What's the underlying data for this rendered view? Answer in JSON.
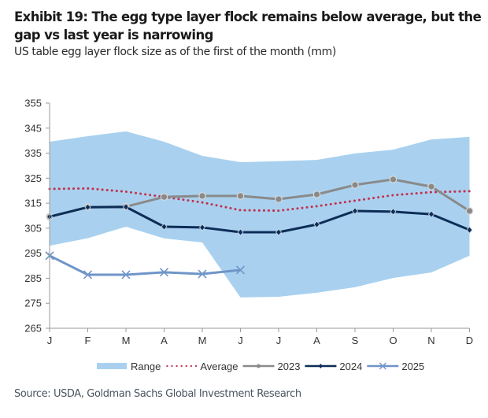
{
  "header": {
    "title": "Exhibit 19: The egg type layer flock remains below average, but the gap vs last year is narrowing",
    "subtitle": "US table egg layer flock size as of the first of the month (mm)"
  },
  "footer": {
    "source": "Source: USDA, Goldman Sachs Global Investment Research"
  },
  "colors": {
    "range": "#a9d1ef",
    "average": "#c0324f",
    "y2023": "#8a8a8a",
    "y2024": "#0d2d57",
    "y2025": "#6f95c8",
    "axis": "#9a9a9a"
  },
  "chart_data": {
    "type": "line",
    "title": "Exhibit 19: The egg type layer flock remains below average, but the gap vs last year is narrowing",
    "subtitle": "US table egg layer flock size as of the first of the month (mm)",
    "xlabel": "",
    "ylabel": "",
    "categories": [
      "J",
      "F",
      "M",
      "A",
      "M",
      "J",
      "J",
      "A",
      "S",
      "O",
      "N",
      "D"
    ],
    "ylim": [
      265,
      355
    ],
    "yticks": [
      265,
      275,
      285,
      295,
      305,
      315,
      325,
      335,
      345,
      355
    ],
    "grid": false,
    "legend_position": "bottom",
    "range": {
      "name": "Range",
      "upper": [
        339.6,
        341.8,
        343.7,
        339.6,
        333.9,
        331.4,
        331.8,
        332.3,
        334.9,
        336.4,
        340.5,
        341.5
      ],
      "lower": [
        298.0,
        301.0,
        305.6,
        300.9,
        299.3,
        277.3,
        277.6,
        279.2,
        281.4,
        285.1,
        287.3,
        294.0
      ]
    },
    "series": [
      {
        "name": "Average",
        "style": "dotted",
        "values": [
          320.7,
          320.9,
          319.6,
          317.5,
          315.3,
          312.2,
          312.0,
          313.8,
          316.0,
          318.2,
          319.4,
          319.8
        ]
      },
      {
        "name": "2023",
        "style": "line-circle",
        "values": [
          309.6,
          313.4,
          313.6,
          317.5,
          317.9,
          317.9,
          316.6,
          318.5,
          322.3,
          324.5,
          321.6,
          311.9
        ]
      },
      {
        "name": "2024",
        "style": "line-diamond",
        "values": [
          309.6,
          313.4,
          313.5,
          305.6,
          305.3,
          303.4,
          303.4,
          306.5,
          311.9,
          311.6,
          310.6,
          304.3
        ]
      },
      {
        "name": "2025",
        "style": "line-x",
        "values": [
          294.0,
          286.4,
          286.4,
          287.4,
          286.7,
          288.3
        ]
      }
    ]
  }
}
